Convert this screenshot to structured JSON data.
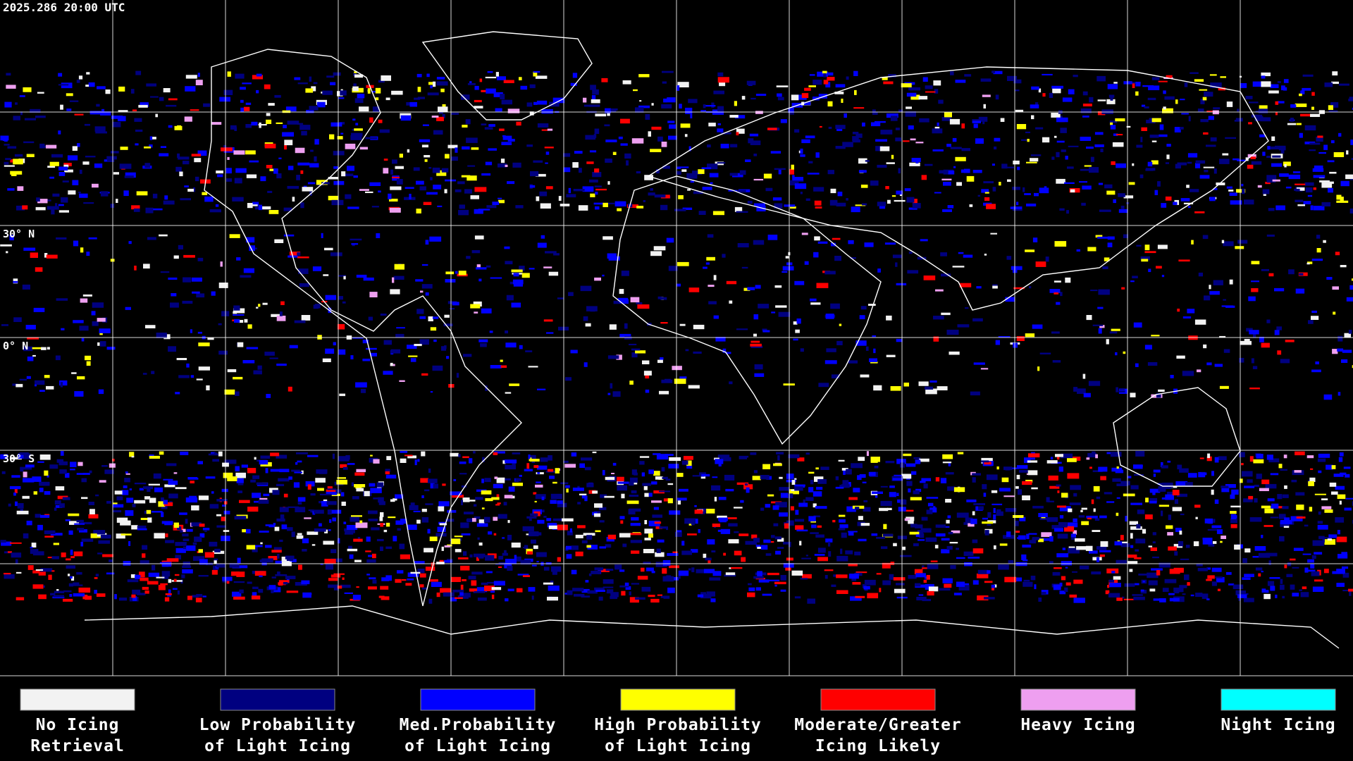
{
  "header": {
    "timestamp": "2025.286 20:00 UTC"
  },
  "map": {
    "latitude_labels": [
      "30° N",
      "0° N",
      "30° S"
    ]
  },
  "legend": {
    "items": [
      {
        "color": "#f2f2f2",
        "label_lines": [
          "No Icing",
          "Retrieval"
        ]
      },
      {
        "color": "#000080",
        "label_lines": [
          "Low Probability",
          "of Light Icing"
        ]
      },
      {
        "color": "#0000ff",
        "label_lines": [
          "Med.Probability",
          "of Light Icing"
        ]
      },
      {
        "color": "#ffff00",
        "label_lines": [
          "High Probability",
          "of Light Icing"
        ]
      },
      {
        "color": "#ff0000",
        "label_lines": [
          "Moderate/Greater",
          "Icing Likely"
        ]
      },
      {
        "color": "#ee9ff0",
        "label_lines": [
          "Heavy Icing"
        ]
      },
      {
        "color": "#00ffff",
        "label_lines": [
          "Night Icing"
        ]
      }
    ]
  }
}
